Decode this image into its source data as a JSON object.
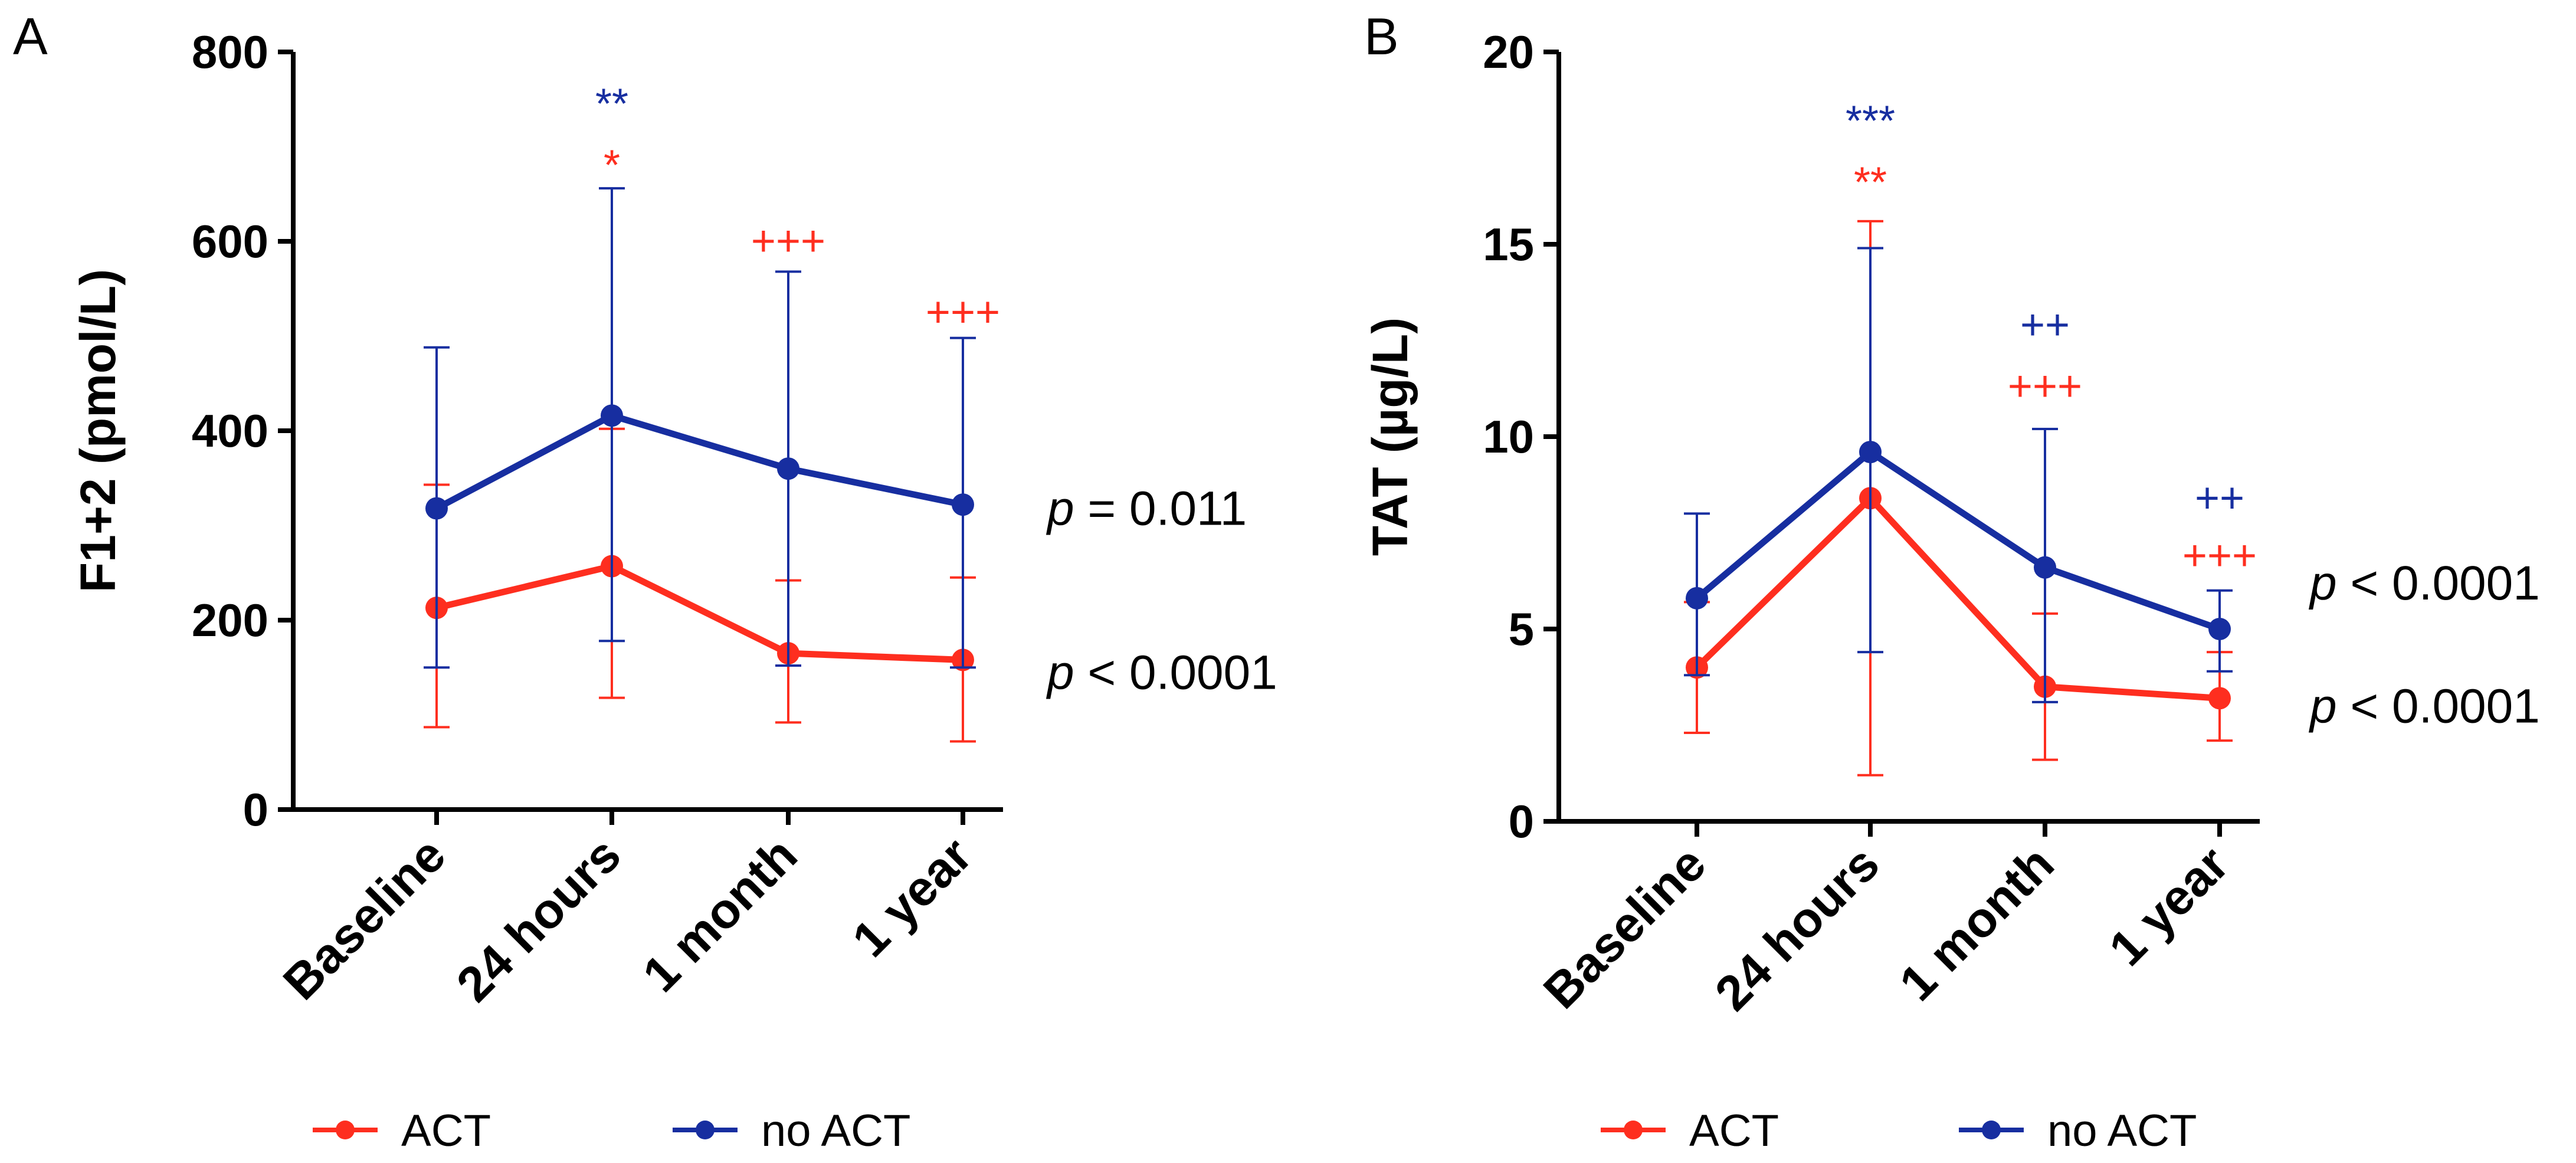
{
  "colors": {
    "act": "#fe2e1f",
    "no_act": "#172ea0",
    "axis": "#000000"
  },
  "chart_data": [
    {
      "panel": "A",
      "type": "line",
      "ylabel": "F1+2 (pmol/L)",
      "categories": [
        "Baseline",
        "24 hours",
        "1 month",
        "1 year"
      ],
      "ylim": [
        0,
        800
      ],
      "yticks": [
        "0",
        "200",
        "400",
        "600",
        "800"
      ],
      "series": [
        {
          "name": "ACT",
          "color_key": "act",
          "values": [
            213,
            257,
            165,
            158
          ],
          "err_low": [
            87,
            118,
            92,
            72
          ],
          "err_high": [
            343,
            402,
            242,
            245
          ]
        },
        {
          "name": "no ACT",
          "color_key": "no_act",
          "values": [
            318,
            416,
            360,
            322
          ],
          "err_low": [
            150,
            178,
            152,
            150
          ],
          "err_high": [
            488,
            656,
            568,
            498
          ]
        }
      ],
      "annotations": [
        {
          "cat": 1,
          "y": 745,
          "text": "**",
          "color_key": "no_act"
        },
        {
          "cat": 1,
          "y": 680,
          "text": "*",
          "color_key": "act"
        },
        {
          "cat": 2,
          "y": 600,
          "text": "+++",
          "color_key": "act"
        },
        {
          "cat": 3,
          "y": 525,
          "text": "+++",
          "color_key": "act"
        }
      ],
      "pvalues": [
        {
          "italic": "p",
          "rest": " = 0.011",
          "y": 318
        },
        {
          "italic": "p",
          "rest": " < 0.0001",
          "y": 145
        }
      ],
      "legend": [
        "ACT",
        "no ACT"
      ]
    },
    {
      "panel": "B",
      "type": "line",
      "ylabel": "TAT (µg/L)",
      "categories": [
        "Baseline",
        "24 hours",
        "1 month",
        "1 year"
      ],
      "ylim": [
        0,
        20
      ],
      "yticks": [
        "0",
        "5",
        "10",
        "15",
        "20"
      ],
      "series": [
        {
          "name": "ACT",
          "color_key": "act",
          "values": [
            4.0,
            8.4,
            3.5,
            3.2
          ],
          "err_low": [
            2.3,
            1.2,
            1.6,
            2.1
          ],
          "err_high": [
            5.7,
            15.6,
            5.4,
            4.4
          ]
        },
        {
          "name": "no ACT",
          "color_key": "no_act",
          "values": [
            5.8,
            9.6,
            6.6,
            5.0
          ],
          "err_low": [
            3.8,
            4.4,
            3.1,
            3.9
          ],
          "err_high": [
            8.0,
            14.9,
            10.2,
            6.0
          ]
        }
      ],
      "annotations": [
        {
          "cat": 1,
          "y": 18.2,
          "text": "***",
          "color_key": "no_act"
        },
        {
          "cat": 1,
          "y": 16.6,
          "text": "**",
          "color_key": "act"
        },
        {
          "cat": 2,
          "y": 12.9,
          "text": "++",
          "color_key": "no_act"
        },
        {
          "cat": 2,
          "y": 11.3,
          "text": "+++",
          "color_key": "act"
        },
        {
          "cat": 3,
          "y": 8.4,
          "text": "++",
          "color_key": "no_act"
        },
        {
          "cat": 3,
          "y": 6.9,
          "text": "+++",
          "color_key": "act"
        }
      ],
      "pvalues": [
        {
          "italic": "p",
          "rest": " < 0.0001",
          "y": 6.2
        },
        {
          "italic": "p",
          "rest": " < 0.0001",
          "y": 3.0
        }
      ],
      "legend": [
        "ACT",
        "no ACT"
      ]
    }
  ]
}
